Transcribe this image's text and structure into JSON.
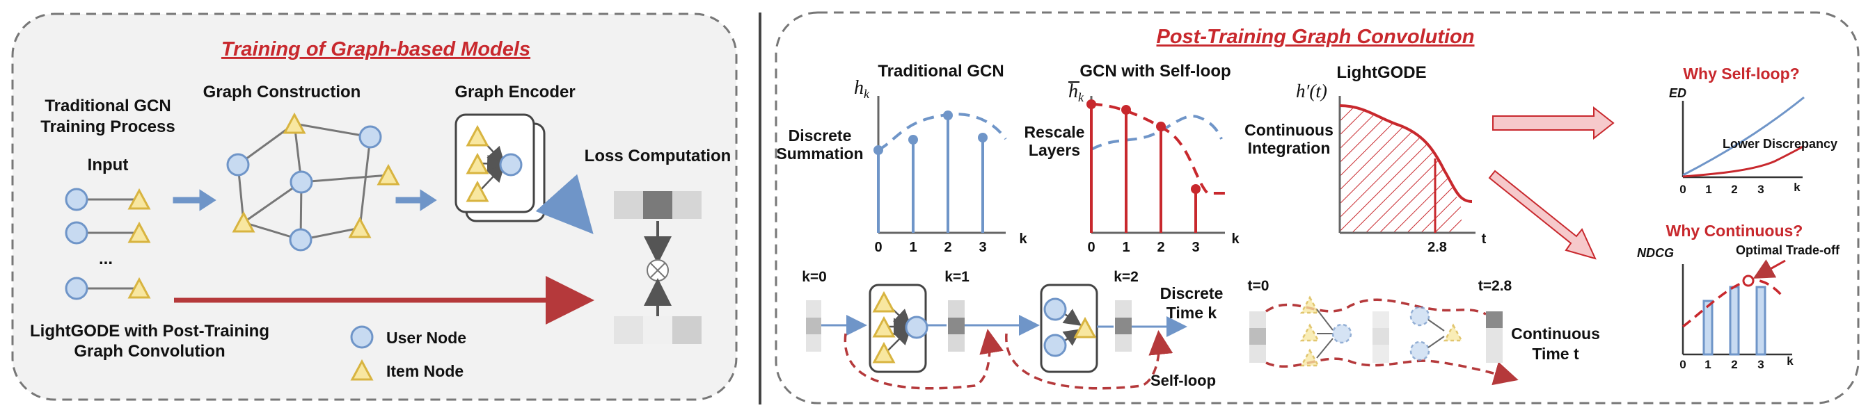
{
  "left_panel": {
    "title": "Training of Graph-based Models",
    "traditional_label_l1": "Traditional GCN",
    "traditional_label_l2": "Training Process",
    "input_label": "Input",
    "ellipsis": "...",
    "graph_construction": "Graph Construction",
    "graph_encoder": "Graph Encoder",
    "loss_computation": "Loss Computation",
    "lightgode_label_l1": "LightGODE with Post-Training",
    "lightgode_label_l2": "Graph Convolution",
    "legend_user": "User Node",
    "legend_item": "Item Node"
  },
  "right_panel": {
    "title": "Post-Training Graph Convolution",
    "traditional_gcn": "Traditional GCN",
    "gcn_self_loop": "GCN with Self-loop",
    "lightgode": "LightGODE",
    "h_k": "h_k",
    "h_bar_k": "h̄_k",
    "h_prime_t": "h′(t)",
    "discrete_l1": "Discrete",
    "discrete_l2": "Summation",
    "rescale_l1": "Rescale",
    "rescale_l2": "Layers",
    "continuous_l1": "Continuous",
    "continuous_l2": "Integration",
    "ticks": [
      "0",
      "1",
      "2",
      "3"
    ],
    "k_axis": "k",
    "t_axis": "t",
    "t_tick": "2.8",
    "k0": "k=0",
    "k1": "k=1",
    "k2": "k=2",
    "discrete_time_l1": "Discrete",
    "discrete_time_l2": "Time k",
    "self_loop": "Self-loop",
    "t0": "t=0",
    "t28": "t=2.8",
    "continuous_time_l1": "Continuous",
    "continuous_time_l2": "Time t",
    "why_self_loop": "Why Self-loop?",
    "ed_label": "ED",
    "lower_discrepancy": "Lower Discrepancy",
    "why_continuous": "Why Continuous?",
    "ndcg_label": "NDCG",
    "optimal_tradeoff": "Optimal Trade-off"
  },
  "colors": {
    "blue": "#6f95c8",
    "blue_fill": "#c7daf1",
    "item_fill": "#f8e7a0",
    "item_stroke": "#d8b440",
    "red": "#c8282d",
    "dark_red": "#b5393b",
    "gray": "#6e6e6e",
    "panel_fill": "#f2f2f2",
    "right_fill": "#ffffff",
    "pink": "#f6c9cb"
  },
  "icons": [
    "user-node-icon",
    "item-node-icon",
    "arrow-icon",
    "multiply-icon"
  ]
}
